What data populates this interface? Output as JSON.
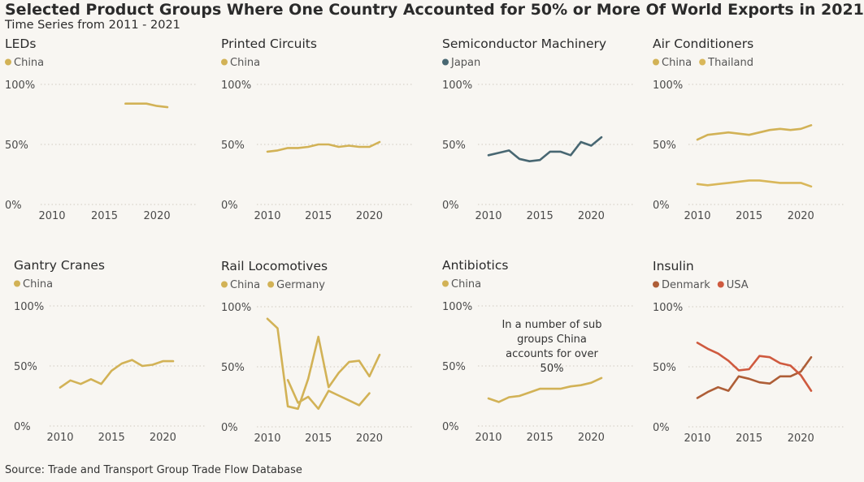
{
  "title": "Selected Product Groups Where One Country Accounted for 50% or More Of World Exports in 2021",
  "subtitle": "Time Series from 2011 - 2021",
  "source": "Source: Trade and Transport Group Trade Flow Database",
  "colors": {
    "china": "#d2b256",
    "thailand": "#d9b75a",
    "germany": "#d2b256",
    "japan": "#486772",
    "denmark": "#ae5e37",
    "usa": "#cf5a3f",
    "gridline": "#cfcac0",
    "axis_text": "#4a4a4a"
  },
  "chart_data": [
    {
      "type": "line",
      "title": "LEDs",
      "xticks": [
        2010,
        2015,
        2020
      ],
      "yticks": [
        "0%",
        "50%",
        "100%"
      ],
      "xlim": [
        2010,
        2021
      ],
      "ylim": [
        0,
        100
      ],
      "series": [
        {
          "name": "China",
          "color": "#d2b256",
          "x": [
            2017,
            2018,
            2019,
            2020,
            2021
          ],
          "y": [
            84,
            84,
            84,
            82,
            81
          ]
        }
      ]
    },
    {
      "type": "line",
      "title": "Printed Circuits",
      "xticks": [
        2010,
        2015,
        2020
      ],
      "yticks": [
        "0%",
        "50%",
        "100%"
      ],
      "xlim": [
        2010,
        2021
      ],
      "ylim": [
        0,
        100
      ],
      "series": [
        {
          "name": "China",
          "color": "#d2b256",
          "x": [
            2010,
            2011,
            2012,
            2013,
            2014,
            2015,
            2016,
            2017,
            2018,
            2019,
            2020,
            2021
          ],
          "y": [
            44,
            45,
            47,
            47,
            48,
            50,
            50,
            48,
            49,
            48,
            48,
            52
          ]
        }
      ]
    },
    {
      "type": "line",
      "title": "Semiconductor Machinery",
      "xticks": [
        2010,
        2015,
        2020
      ],
      "yticks": [
        "0%",
        "50%",
        "100%"
      ],
      "xlim": [
        2010,
        2021
      ],
      "ylim": [
        0,
        100
      ],
      "series": [
        {
          "name": "Japan",
          "color": "#486772",
          "x": [
            2010,
            2011,
            2012,
            2013,
            2014,
            2015,
            2016,
            2017,
            2018,
            2019,
            2020,
            2021
          ],
          "y": [
            41,
            43,
            45,
            38,
            36,
            37,
            44,
            44,
            41,
            52,
            49,
            56
          ]
        }
      ]
    },
    {
      "type": "line",
      "title": "Air Conditioners",
      "xticks": [
        2010,
        2015,
        2020
      ],
      "yticks": [
        "0%",
        "50%",
        "100%"
      ],
      "xlim": [
        2010,
        2021
      ],
      "ylim": [
        0,
        100
      ],
      "series": [
        {
          "name": "China",
          "color": "#d2b256",
          "x": [
            2010,
            2011,
            2012,
            2013,
            2014,
            2015,
            2016,
            2017,
            2018,
            2019,
            2020,
            2021
          ],
          "y": [
            54,
            58,
            59,
            60,
            59,
            58,
            60,
            62,
            63,
            62,
            63,
            66
          ]
        },
        {
          "name": "Thailand",
          "color": "#d9b75a",
          "x": [
            2010,
            2011,
            2012,
            2013,
            2014,
            2015,
            2016,
            2017,
            2018,
            2019,
            2020,
            2021
          ],
          "y": [
            17,
            16,
            17,
            18,
            19,
            20,
            20,
            19,
            18,
            18,
            18,
            15
          ]
        }
      ]
    },
    {
      "type": "line",
      "title": "Gantry Cranes",
      "xticks": [
        2010,
        2015,
        2020
      ],
      "yticks": [
        "0%",
        "50%",
        "100%"
      ],
      "xlim": [
        2010,
        2021
      ],
      "ylim": [
        0,
        100
      ],
      "series": [
        {
          "name": "China",
          "color": "#d2b256",
          "x": [
            2010,
            2011,
            2012,
            2013,
            2014,
            2015,
            2016,
            2017,
            2018,
            2019,
            2020,
            2021
          ],
          "y": [
            32,
            38,
            35,
            39,
            35,
            46,
            52,
            55,
            50,
            51,
            54,
            54
          ]
        }
      ]
    },
    {
      "type": "line",
      "title": "Rail Locomotives",
      "xticks": [
        2010,
        2015,
        2020
      ],
      "yticks": [
        "0%",
        "50%",
        "100%"
      ],
      "xlim": [
        2010,
        2021
      ],
      "ylim": [
        0,
        100
      ],
      "series": [
        {
          "name": "China",
          "color": "#d2b256",
          "x": [
            2010,
            2011,
            2012,
            2013,
            2014,
            2015,
            2016,
            2017,
            2018,
            2019,
            2020,
            2021
          ],
          "y": [
            90,
            82,
            17,
            15,
            40,
            75,
            33,
            45,
            54,
            55,
            42,
            60
          ]
        },
        {
          "name": "Germany",
          "color": "#d2b256",
          "x": [
            2012,
            2013,
            2014,
            2015,
            2016,
            2017,
            2018,
            2019,
            2020
          ],
          "y": [
            39,
            20,
            25,
            15,
            30,
            26,
            22,
            18,
            28
          ]
        }
      ]
    },
    {
      "type": "line",
      "title": "Antibiotics",
      "annotation": "In a number of sub groups China accounts for over 50%",
      "xticks": [
        2010,
        2015,
        2020
      ],
      "yticks": [
        "0%",
        "50%",
        "100%"
      ],
      "xlim": [
        2010,
        2021
      ],
      "ylim": [
        0,
        100
      ],
      "series": [
        {
          "name": "China",
          "color": "#d2b256",
          "x": [
            2010,
            2011,
            2012,
            2013,
            2014,
            2015,
            2016,
            2017,
            2018,
            2019,
            2020,
            2021
          ],
          "y": [
            23,
            20,
            24,
            25,
            28,
            31,
            31,
            31,
            33,
            34,
            36,
            40
          ]
        }
      ]
    },
    {
      "type": "line",
      "title": "Insulin",
      "xticks": [
        2010,
        2015,
        2020
      ],
      "yticks": [
        "0%",
        "50%",
        "100%"
      ],
      "xlim": [
        2010,
        2021
      ],
      "ylim": [
        0,
        100
      ],
      "series": [
        {
          "name": "Denmark",
          "color": "#ae5e37",
          "x": [
            2010,
            2011,
            2012,
            2013,
            2014,
            2015,
            2016,
            2017,
            2018,
            2019,
            2020,
            2021
          ],
          "y": [
            24,
            29,
            33,
            30,
            42,
            40,
            37,
            36,
            42,
            42,
            46,
            58
          ]
        },
        {
          "name": "USA",
          "color": "#cf5a3f",
          "x": [
            2010,
            2011,
            2012,
            2013,
            2014,
            2015,
            2016,
            2017,
            2018,
            2019,
            2020,
            2021
          ],
          "y": [
            70,
            65,
            61,
            55,
            47,
            48,
            59,
            58,
            53,
            51,
            43,
            30
          ]
        }
      ]
    }
  ]
}
